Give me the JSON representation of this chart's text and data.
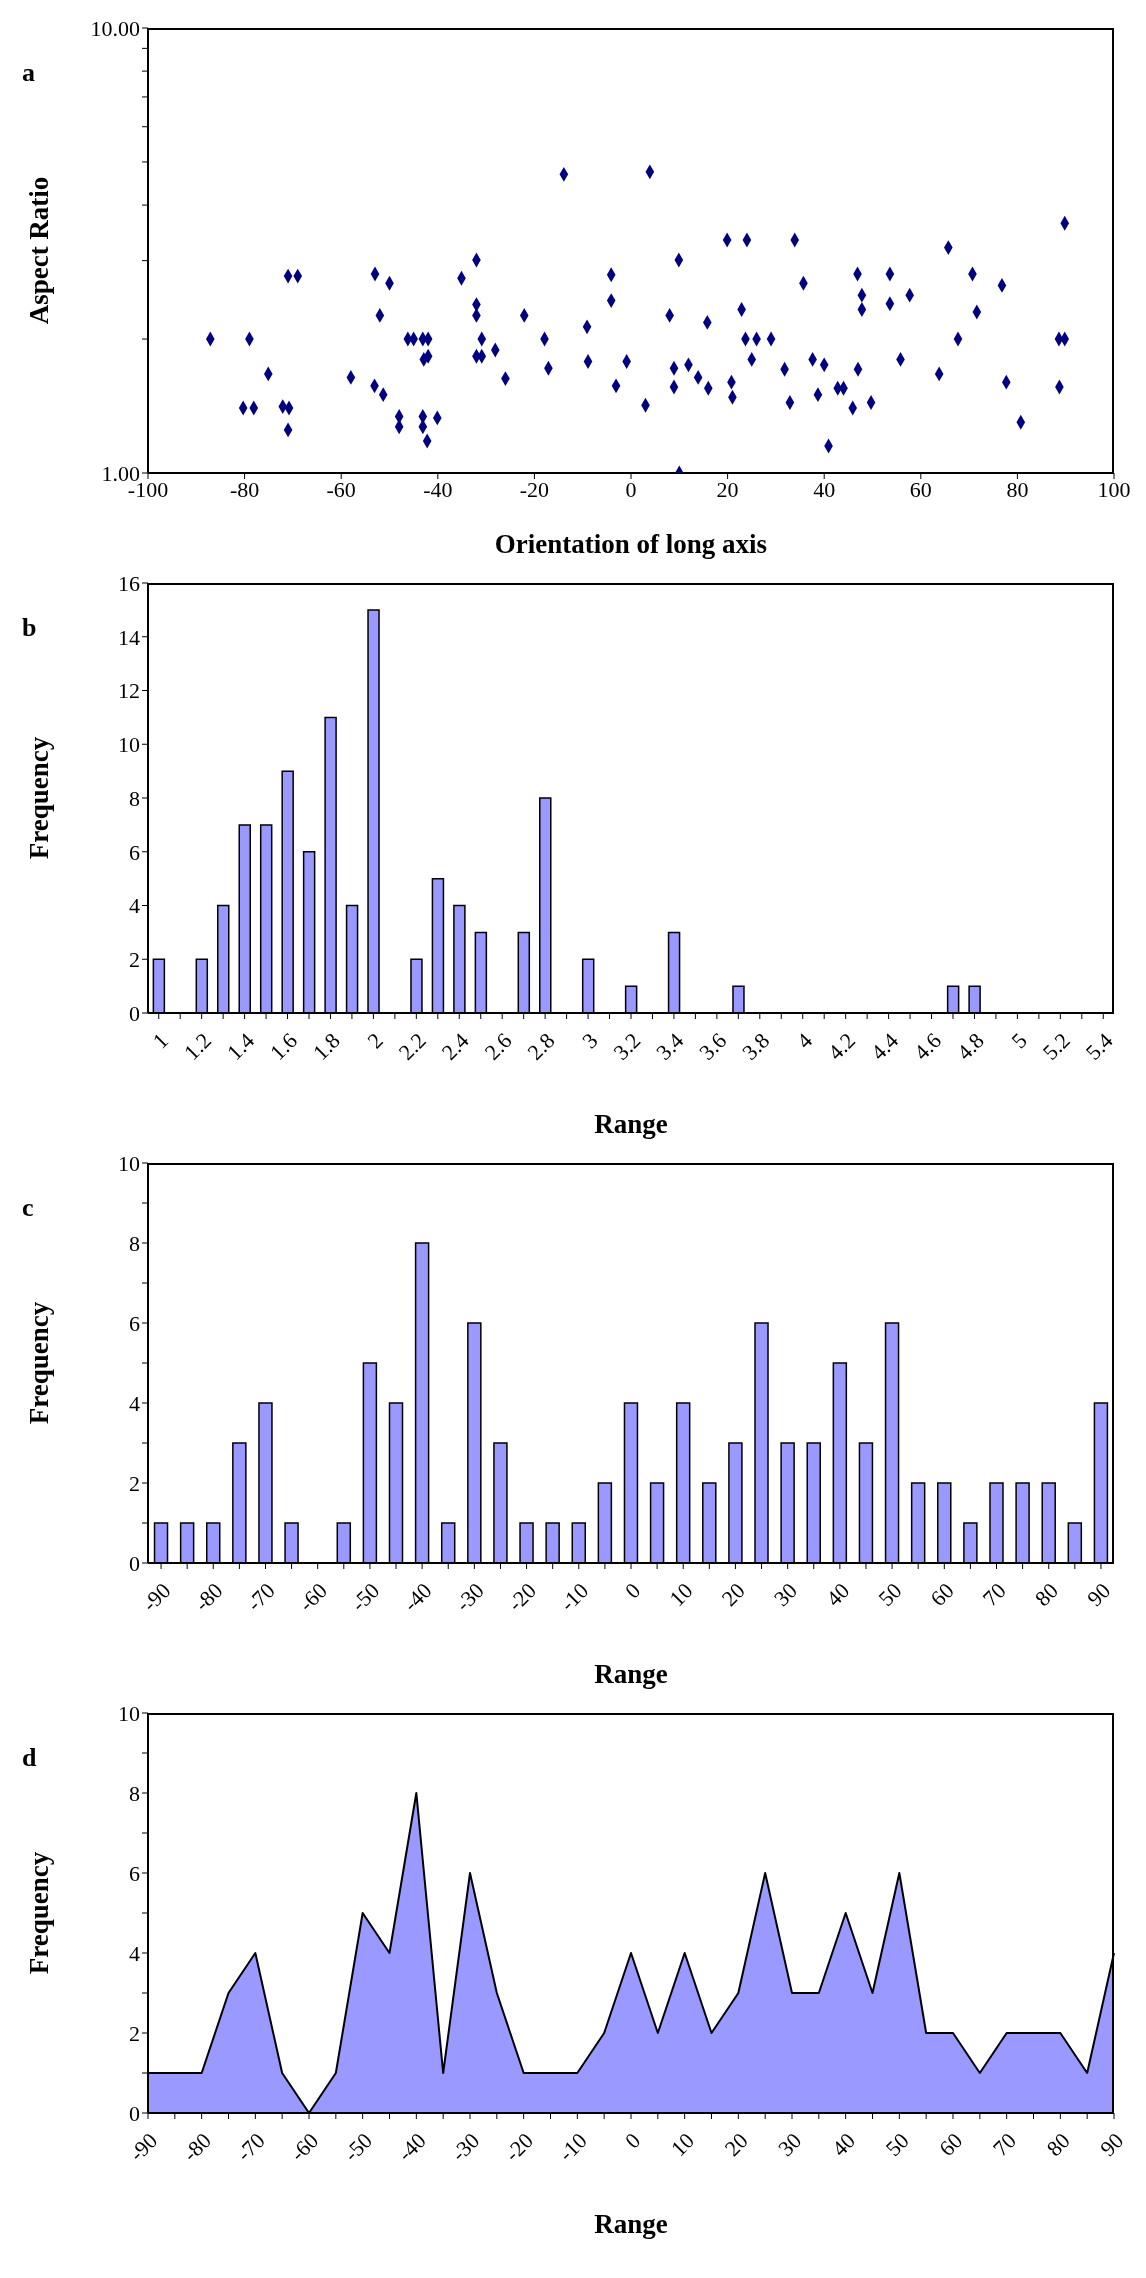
{
  "chart_data": [
    {
      "type": "scatter",
      "xlabel": "Orientation of long axis",
      "ylabel": "Aspect Ratio",
      "annotations": [
        "a"
      ],
      "marker": "diamond",
      "log": "y",
      "color": "#000080",
      "x": [
        -87.1,
        -79,
        -80.3,
        -78.1,
        -75.1,
        -72.1,
        -70.8,
        -71,
        -71,
        -69,
        -58,
        -53.1,
        -51.3,
        -53,
        -52,
        -50,
        -48,
        -48,
        -46.2,
        -45,
        -43.1,
        -42,
        -42.9,
        -42,
        -43.1,
        -43.1,
        -42.2,
        -40.1,
        -35.1,
        -32,
        -32,
        -32,
        -32,
        -30.9,
        -30.9,
        -28.1,
        -26,
        -22.1,
        -17.9,
        -17.1,
        -13.9,
        -9.1,
        -8.9,
        -4.1,
        -4.1,
        -3.1,
        -0.9,
        3,
        3.9,
        8,
        8.9,
        8.9,
        9.9,
        10,
        11.9,
        13.9,
        15.8,
        16,
        19.9,
        20.8,
        21,
        22.9,
        24,
        23.7,
        26,
        29,
        25,
        31.8,
        32.9,
        33.9,
        35.7,
        37.6,
        38.7,
        40,
        40.9,
        42.8,
        44,
        45.9,
        46.9,
        47,
        47.8,
        47.8,
        49.7,
        53.6,
        53.6,
        55.8,
        57.7,
        63.8,
        65.7,
        67.7,
        70.7,
        71.6,
        76.8,
        77.7,
        80.7,
        88.6,
        89.8,
        88.7,
        89.8
      ],
      "values": [
        2.0,
        2.0,
        1.4,
        1.4,
        1.67,
        1.41,
        1.4,
        1.25,
        2.77,
        2.77,
        1.64,
        1.57,
        1.5,
        2.8,
        2.26,
        2.67,
        1.34,
        1.27,
        2.0,
        2.0,
        2.0,
        2.0,
        1.8,
        1.83,
        1.34,
        1.27,
        1.18,
        1.33,
        2.74,
        3.01,
        2.39,
        2.26,
        1.83,
        2.0,
        1.83,
        1.89,
        1.63,
        2.26,
        2.0,
        1.72,
        4.69,
        2.13,
        1.78,
        2.79,
        2.44,
        1.57,
        1.78,
        1.42,
        4.75,
        2.26,
        1.72,
        1.56,
        3.01,
        1.0,
        1.75,
        1.64,
        2.18,
        1.55,
        3.34,
        1.6,
        1.48,
        2.33,
        3.34,
        2.0,
        2.0,
        2.0,
        1.8,
        1.71,
        1.44,
        3.34,
        2.67,
        1.8,
        1.5,
        1.75,
        1.15,
        1.55,
        1.55,
        1.4,
        2.8,
        1.71,
        2.51,
        2.33,
        1.44,
        2.8,
        2.4,
        1.8,
        2.51,
        1.67,
        3.21,
        2.0,
        2.8,
        2.3,
        2.64,
        1.6,
        1.3,
        2.0,
        2.0,
        1.56,
        3.64
      ],
      "xlim": [
        -100,
        100
      ],
      "xticks": [
        -100,
        -80,
        -60,
        -40,
        -20,
        0,
        20,
        40,
        60,
        80,
        100
      ],
      "ylim": [
        1,
        10
      ],
      "yticks": [
        {
          "value": 1,
          "label": "1.00"
        },
        {
          "value": 2,
          "label": null
        },
        {
          "value": 3,
          "label": null
        },
        {
          "value": 4,
          "label": null
        },
        {
          "value": 5,
          "label": null
        },
        {
          "value": 6,
          "label": null
        },
        {
          "value": 7,
          "label": null
        },
        {
          "value": 8,
          "label": null
        },
        {
          "value": 9,
          "label": null
        },
        {
          "value": 10,
          "label": "10.00"
        }
      ]
    },
    {
      "type": "bar",
      "xlabel": "Range",
      "ylabel": "Frequency",
      "annotations": [
        "b"
      ],
      "color": "#9999ff",
      "categories": [
        "1",
        null,
        "1.2",
        null,
        "1.4",
        null,
        "1.6",
        null,
        "1.8",
        null,
        "2",
        null,
        "2.2",
        null,
        "2.4",
        null,
        "2.6",
        null,
        "2.8",
        null,
        "3",
        null,
        "3.2",
        null,
        "3.4",
        null,
        "3.6",
        null,
        "3.8",
        null,
        "4",
        null,
        "4.2",
        null,
        "4.4",
        null,
        "4.6",
        null,
        "4.8",
        null,
        "5",
        null,
        "5.2",
        null,
        "5.4"
      ],
      "values": [
        2,
        0,
        2,
        4,
        7,
        7,
        9,
        6,
        11,
        4,
        15,
        0,
        2,
        5,
        4,
        3,
        0,
        3,
        8,
        0,
        2,
        0,
        1,
        0,
        3,
        0,
        0,
        1,
        0,
        0,
        0,
        0,
        0,
        0,
        0,
        0,
        0,
        1,
        1,
        0,
        0,
        0,
        0,
        0,
        0
      ],
      "ylim": [
        0,
        16
      ],
      "yticks": [
        0,
        2,
        4,
        6,
        8,
        10,
        12,
        14,
        16
      ]
    },
    {
      "type": "bar",
      "xlabel": "Range",
      "ylabel": "Frequency",
      "annotations": [
        "c"
      ],
      "color": "#9999ff",
      "categories": [
        "-90",
        null,
        "-80",
        null,
        "-70",
        null,
        "-60",
        null,
        "-50",
        null,
        "-40",
        null,
        "-30",
        null,
        "-20",
        null,
        "-10",
        null,
        "0",
        null,
        "10",
        null,
        "20",
        null,
        "30",
        null,
        "40",
        null,
        "50",
        null,
        "60",
        null,
        "70",
        null,
        "80",
        null,
        "90"
      ],
      "values": [
        1,
        1,
        1,
        3,
        4,
        1,
        0,
        1,
        5,
        4,
        8,
        1,
        6,
        3,
        1,
        1,
        1,
        2,
        4,
        2,
        4,
        2,
        3,
        6,
        3,
        3,
        5,
        3,
        6,
        2,
        2,
        1,
        2,
        2,
        2,
        1,
        4
      ],
      "ylim": [
        0,
        10
      ],
      "yticks": [
        0,
        {
          "value": 1,
          "label": null
        },
        2,
        {
          "value": 3,
          "label": null
        },
        4,
        {
          "value": 5,
          "label": null
        },
        6,
        {
          "value": 7,
          "label": null
        },
        8,
        {
          "value": 9,
          "label": null
        },
        10
      ]
    },
    {
      "type": "area",
      "xlabel": "Range",
      "ylabel": "Frequency",
      "annotations": [
        "d"
      ],
      "color": "#9999ff",
      "categories": [
        "-90",
        null,
        "-80",
        null,
        "-70",
        null,
        "-60",
        null,
        "-50",
        null,
        "-40",
        null,
        "-30",
        null,
        "-20",
        null,
        "-10",
        null,
        "0",
        null,
        "10",
        null,
        "20",
        null,
        "30",
        null,
        "40",
        null,
        "50",
        null,
        "60",
        null,
        "70",
        null,
        "80",
        null,
        "90"
      ],
      "values": [
        1,
        1,
        1,
        3,
        4,
        1,
        0,
        1,
        5,
        4,
        8,
        1,
        6,
        3,
        1,
        1,
        1,
        2,
        4,
        2,
        4,
        2,
        3,
        6,
        3,
        3,
        5,
        3,
        6,
        2,
        2,
        1,
        2,
        2,
        2,
        1,
        4
      ],
      "ylim": [
        0,
        10
      ],
      "yticks": [
        0,
        {
          "value": 1,
          "label": null
        },
        2,
        {
          "value": 3,
          "label": null
        },
        4,
        {
          "value": 5,
          "label": null
        },
        6,
        {
          "value": 7,
          "label": null
        },
        8,
        {
          "value": 9,
          "label": null
        },
        10
      ]
    }
  ]
}
